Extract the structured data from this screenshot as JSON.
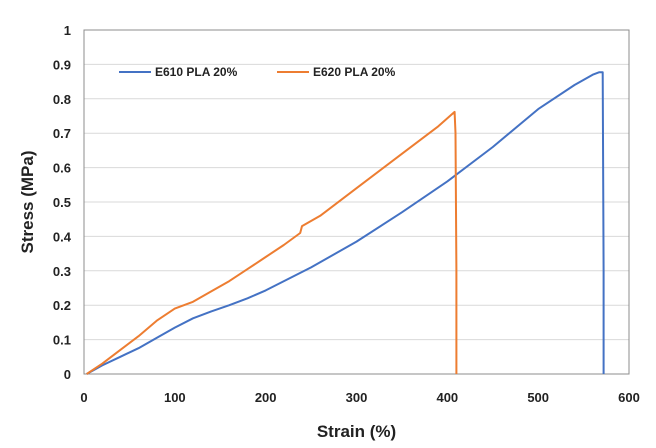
{
  "chart_data": {
    "type": "line",
    "title": "",
    "xlabel": "Strain (%)",
    "ylabel": "Stress (MPa)",
    "xlim": [
      0,
      600
    ],
    "ylim": [
      0,
      1
    ],
    "x_ticks": [
      "0",
      "100",
      "200",
      "300",
      "400",
      "500",
      "600"
    ],
    "y_ticks": [
      "0",
      "0.1",
      "0.2",
      "0.3",
      "0.4",
      "0.5",
      "0.6",
      "0.7",
      "0.8",
      "0.9",
      "1"
    ],
    "grid": "horizontal",
    "legend_position": "top-left",
    "series": [
      {
        "name": "E610 PLA 20%",
        "color": "#4472C4",
        "x": [
          3,
          20,
          40,
          60,
          80,
          100,
          120,
          140,
          160,
          180,
          200,
          250,
          300,
          350,
          400,
          450,
          500,
          540,
          560,
          567,
          571,
          572,
          572
        ],
        "y": [
          0.0,
          0.025,
          0.05,
          0.075,
          0.105,
          0.135,
          0.162,
          0.182,
          0.2,
          0.22,
          0.243,
          0.31,
          0.385,
          0.47,
          0.56,
          0.66,
          0.77,
          0.84,
          0.87,
          0.877,
          0.877,
          0.3,
          0.0
        ]
      },
      {
        "name": "E620 PLA 20%",
        "color": "#ED7D31",
        "x": [
          3,
          20,
          40,
          60,
          80,
          100,
          120,
          140,
          160,
          180,
          200,
          220,
          238,
          240,
          260,
          300,
          350,
          390,
          405,
          408,
          409,
          410,
          410
        ],
        "y": [
          0.0,
          0.03,
          0.07,
          0.11,
          0.155,
          0.19,
          0.21,
          0.24,
          0.27,
          0.305,
          0.34,
          0.375,
          0.41,
          0.43,
          0.46,
          0.54,
          0.64,
          0.72,
          0.755,
          0.762,
          0.7,
          0.3,
          0.0
        ]
      }
    ]
  }
}
